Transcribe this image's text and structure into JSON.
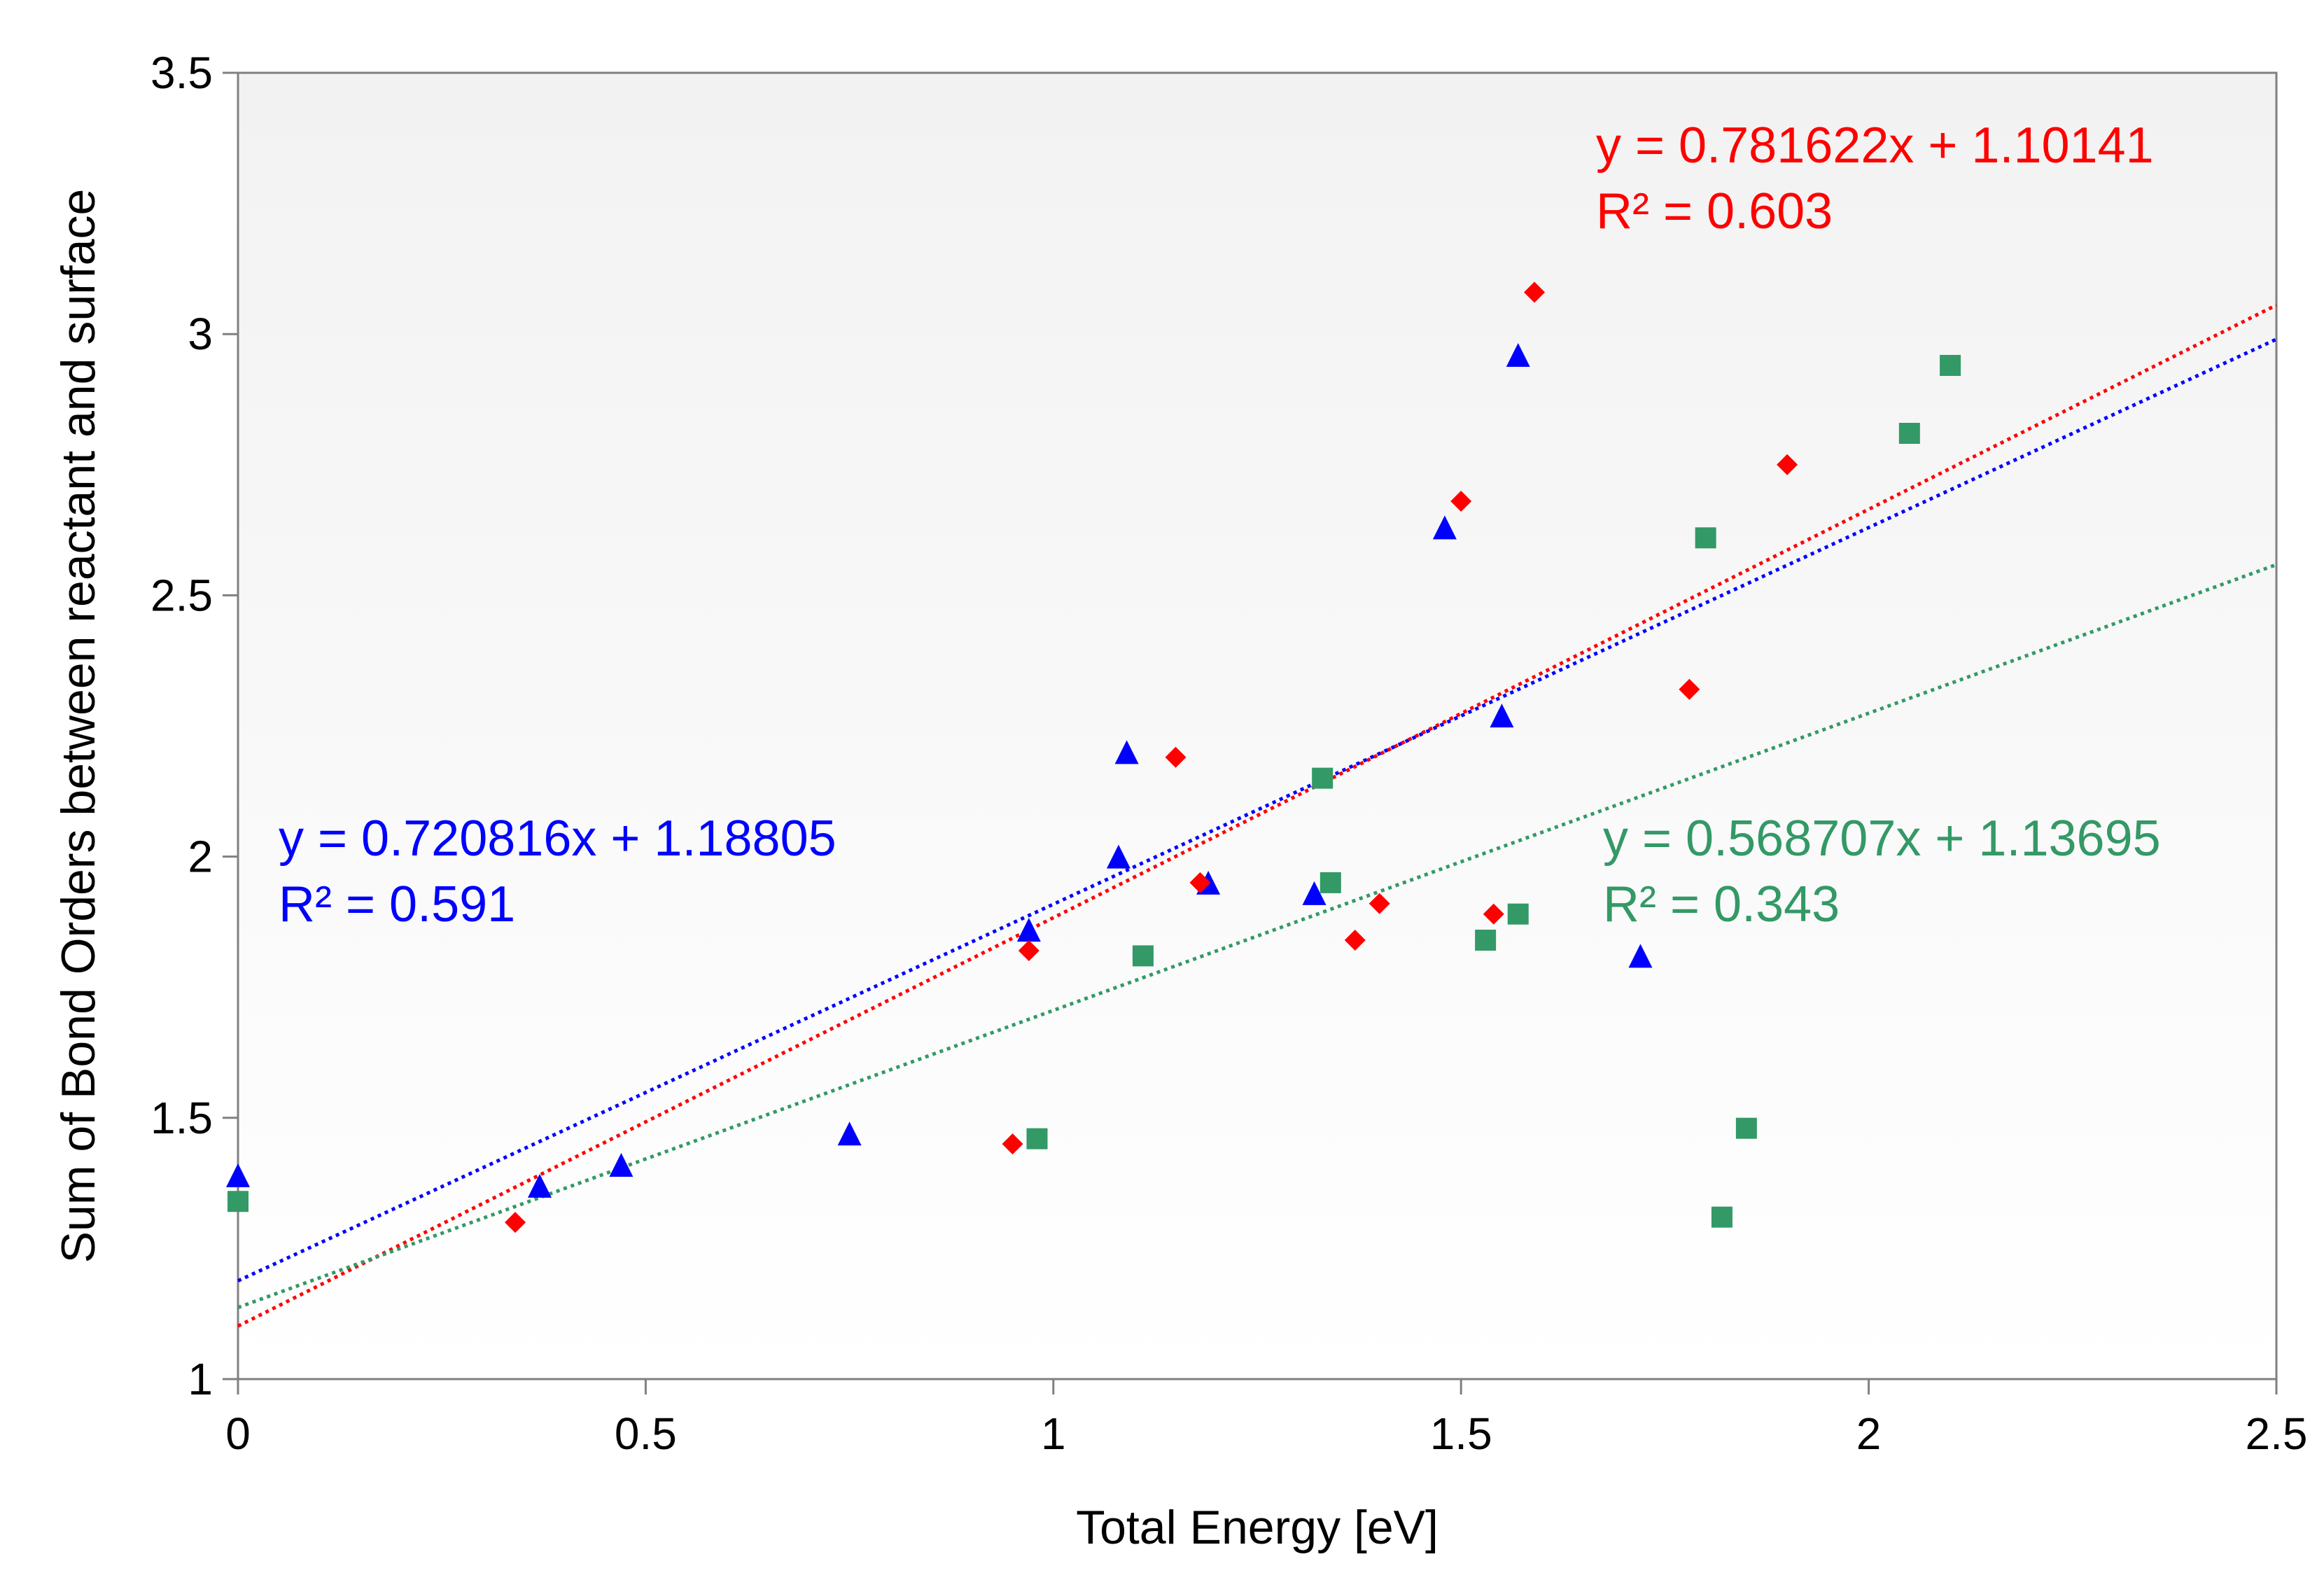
{
  "chart_data": {
    "type": "scatter",
    "title": "",
    "xlabel": "Total Energy [eV]",
    "ylabel": "Sum of Bond Orders between reactant and surface",
    "xlim": [
      0,
      2.5
    ],
    "ylim": [
      1,
      3.5
    ],
    "x_ticks": [
      "0",
      "0.5",
      "1",
      "1.5",
      "2",
      "2.5"
    ],
    "y_ticks": [
      "1",
      "1.5",
      "2",
      "2.5",
      "3",
      "3.5"
    ],
    "grid": false,
    "legend": "none",
    "background": "light gray gradient",
    "series": [
      {
        "color": "#ff0000",
        "marker": "diamond",
        "points": [
          [
            0.34,
            1.3
          ],
          [
            0.95,
            1.45
          ],
          [
            0.97,
            1.82
          ],
          [
            1.15,
            2.19
          ],
          [
            1.18,
            1.95
          ],
          [
            1.37,
            1.84
          ],
          [
            1.4,
            1.91
          ],
          [
            1.5,
            2.68
          ],
          [
            1.54,
            1.89
          ],
          [
            1.59,
            3.08
          ],
          [
            1.78,
            2.32
          ],
          [
            1.9,
            2.75
          ]
        ],
        "trendline": {
          "slope": 0.781622,
          "intercept": 1.10141
        },
        "equation": "y = 0.781622x + 1.10141",
        "r2": "R² = 0.603"
      },
      {
        "color": "#0000ff",
        "marker": "triangle",
        "points": [
          [
            0.0,
            1.39
          ],
          [
            0.37,
            1.37
          ],
          [
            0.47,
            1.41
          ],
          [
            0.75,
            1.47
          ],
          [
            0.97,
            1.86
          ],
          [
            1.08,
            2.0
          ],
          [
            1.09,
            2.2
          ],
          [
            1.19,
            1.95
          ],
          [
            1.32,
            1.93
          ],
          [
            1.48,
            2.63
          ],
          [
            1.55,
            2.27
          ],
          [
            1.57,
            2.96
          ],
          [
            1.72,
            1.81
          ]
        ],
        "trendline": {
          "slope": 0.720816,
          "intercept": 1.18805
        },
        "equation": "y = 0.720816x + 1.18805",
        "r2": "R² = 0.591"
      },
      {
        "color": "#339966",
        "marker": "square",
        "points": [
          [
            0.0,
            1.34
          ],
          [
            0.98,
            1.46
          ],
          [
            1.11,
            1.81
          ],
          [
            1.33,
            2.15
          ],
          [
            1.34,
            1.95
          ],
          [
            1.53,
            1.84
          ],
          [
            1.57,
            1.89
          ],
          [
            1.8,
            2.61
          ],
          [
            1.82,
            1.31
          ],
          [
            1.85,
            1.48
          ],
          [
            2.05,
            2.81
          ],
          [
            2.1,
            2.94
          ]
        ],
        "trendline": {
          "slope": 0.568707,
          "intercept": 1.13695
        },
        "equation": "y = 0.568707x + 1.13695",
        "r2": "R² = 0.343"
      }
    ]
  }
}
